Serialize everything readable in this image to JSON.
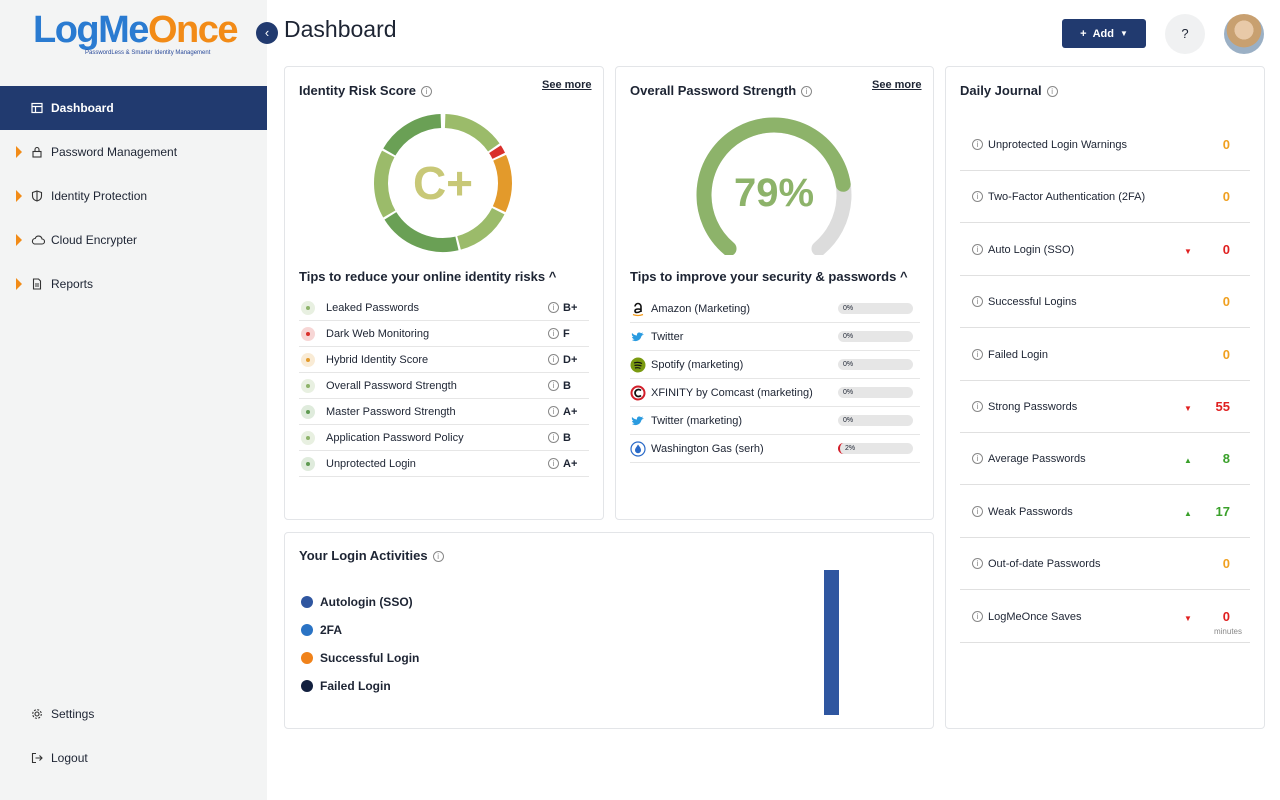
{
  "logo": {
    "main_a": "LogMe",
    "main_b": "Once",
    "tagline": "PasswordLess & Smarter Identity Management"
  },
  "sidebar": {
    "items": [
      {
        "label": "Dashboard",
        "icon": "layout-icon"
      },
      {
        "label": "Password Management",
        "icon": "lock-icon"
      },
      {
        "label": "Identity Protection",
        "icon": "shield-icon"
      },
      {
        "label": "Cloud Encrypter",
        "icon": "cloud-icon"
      },
      {
        "label": "Reports",
        "icon": "document-icon"
      }
    ],
    "settings": "Settings",
    "logout": "Logout"
  },
  "header": {
    "title": "Dashboard",
    "add_label": "Add",
    "help": "?"
  },
  "risk": {
    "title": "Identity Risk Score",
    "see_more": "See more",
    "grade": "C+",
    "tips_title": "Tips to reduce your online identity risks",
    "items": [
      {
        "name": "Leaked Passwords",
        "grade": "B+",
        "color": "#8db36a"
      },
      {
        "name": "Dark Web Monitoring",
        "grade": "F",
        "color": "#d9302c"
      },
      {
        "name": "Hybrid Identity Score",
        "grade": "D+",
        "color": "#e39a2b"
      },
      {
        "name": "Overall Password Strength",
        "grade": "B",
        "color": "#8db36a"
      },
      {
        "name": "Master Password Strength",
        "grade": "A+",
        "color": "#5f9a52"
      },
      {
        "name": "Application Password Policy",
        "grade": "B",
        "color": "#8db36a"
      },
      {
        "name": "Unprotected Login",
        "grade": "A+",
        "color": "#5f9a52"
      }
    ]
  },
  "strength": {
    "title": "Overall Password Strength",
    "see_more": "See more",
    "percent_label": "79%",
    "percent": 79,
    "tips_title": "Tips to improve your security & passwords",
    "items": [
      {
        "name": "Amazon (Marketing)",
        "value": "0%",
        "icon": "amazon-icon"
      },
      {
        "name": "Twitter",
        "value": "0%",
        "icon": "twitter-icon"
      },
      {
        "name": "Spotify (marketing)",
        "value": "0%",
        "icon": "spotify-icon"
      },
      {
        "name": "XFINITY by Comcast (marketing)",
        "value": "0%",
        "icon": "comcast-icon"
      },
      {
        "name": "Twitter (marketing)",
        "value": "0%",
        "icon": "twitter-icon"
      },
      {
        "name": "Washington Gas (serh)",
        "value": "2%",
        "icon": "washington-gas-icon"
      }
    ]
  },
  "login": {
    "title": "Your Login Activities",
    "legend": [
      {
        "label": "Autologin (SSO)",
        "color": "#2f56a0"
      },
      {
        "label": "2FA",
        "color": "#2a73c4"
      },
      {
        "label": "Successful Login",
        "color": "#f0821a"
      },
      {
        "label": "Failed Login",
        "color": "#12203f"
      }
    ]
  },
  "journal": {
    "title": "Daily Journal",
    "unit": "minutes",
    "rows": [
      {
        "label": "Unprotected Login Warnings",
        "value": "0",
        "trend": "",
        "color": "#f0a020"
      },
      {
        "label": "Two-Factor Authentication (2FA)",
        "value": "0",
        "trend": "",
        "color": "#f0a020"
      },
      {
        "label": "Auto Login (SSO)",
        "value": "0",
        "trend": "down",
        "color": "#e02020"
      },
      {
        "label": "Successful Logins",
        "value": "0",
        "trend": "",
        "color": "#f0a020"
      },
      {
        "label": "Failed Login",
        "value": "0",
        "trend": "",
        "color": "#f0a020"
      },
      {
        "label": "Strong Passwords",
        "value": "55",
        "trend": "down",
        "color": "#e02020"
      },
      {
        "label": "Average Passwords",
        "value": "8",
        "trend": "up",
        "color": "#3aa02a"
      },
      {
        "label": "Weak Passwords",
        "value": "17",
        "trend": "up",
        "color": "#3aa02a"
      },
      {
        "label": "Out-of-date Passwords",
        "value": "0",
        "trend": "",
        "color": "#f0a020"
      },
      {
        "label": "LogMeOnce Saves",
        "value": "0",
        "trend": "down",
        "color": "#e02020"
      }
    ]
  }
}
